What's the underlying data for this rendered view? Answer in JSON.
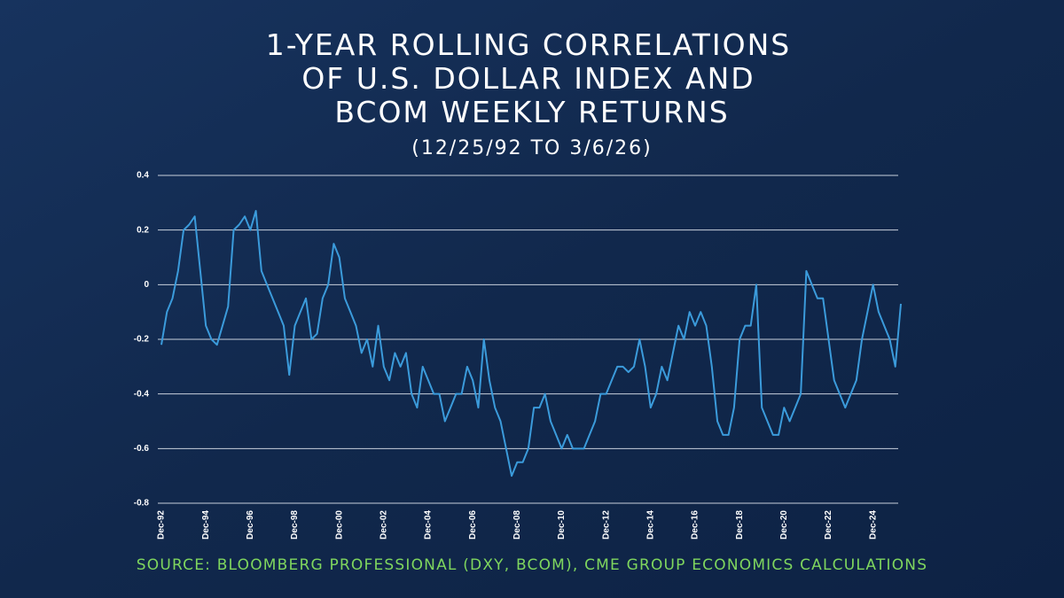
{
  "chart_data": {
    "type": "line",
    "title": [
      "1-YEAR ROLLING CORRELATIONS",
      "OF U.S. DOLLAR INDEX AND",
      "BCOM WEEKLY RETURNS"
    ],
    "subtitle": "(12/25/92 TO 3/6/26)",
    "source": "SOURCE: BLOOMBERG PROFESSIONAL (DXY, BCOM), CME GROUP ECONOMICS CALCULATIONS",
    "categories": [
      "Dec-92",
      null,
      null,
      null,
      null,
      null,
      null,
      null,
      "Dec-94",
      null,
      null,
      null,
      null,
      null,
      null,
      null,
      "Dec-96",
      null,
      null,
      null,
      null,
      null,
      null,
      null,
      "Dec-98",
      null,
      null,
      null,
      null,
      null,
      null,
      null,
      "Dec-00",
      null,
      null,
      null,
      null,
      null,
      null,
      null,
      "Dec-02",
      null,
      null,
      null,
      null,
      null,
      null,
      null,
      "Dec-04",
      null,
      null,
      null,
      null,
      null,
      null,
      null,
      "Dec-06",
      null,
      null,
      null,
      null,
      null,
      null,
      null,
      "Dec-08",
      null,
      null,
      null,
      null,
      null,
      null,
      null,
      "Dec-10",
      null,
      null,
      null,
      null,
      null,
      null,
      null,
      "Dec-12",
      null,
      null,
      null,
      null,
      null,
      null,
      null,
      "Dec-14",
      null,
      null,
      null,
      null,
      null,
      null,
      null,
      "Dec-16",
      null,
      null,
      null,
      null,
      null,
      null,
      null,
      "Dec-18",
      null,
      null,
      null,
      null,
      null,
      null,
      null,
      "Dec-20",
      null,
      null,
      null,
      null,
      null,
      null,
      null,
      "Dec-22",
      null,
      null,
      null,
      null,
      null,
      null,
      null,
      "Dec-24",
      null,
      null,
      null,
      null,
      null
    ],
    "values": [
      -0.22,
      -0.1,
      -0.05,
      0.05,
      0.2,
      0.22,
      0.25,
      0.05,
      -0.15,
      -0.2,
      -0.22,
      -0.15,
      -0.08,
      0.2,
      0.22,
      0.25,
      0.2,
      0.27,
      0.05,
      0.0,
      -0.05,
      -0.1,
      -0.15,
      -0.33,
      -0.15,
      -0.1,
      -0.05,
      -0.2,
      -0.18,
      -0.05,
      0.0,
      0.15,
      0.1,
      -0.05,
      -0.1,
      -0.15,
      -0.25,
      -0.2,
      -0.3,
      -0.15,
      -0.3,
      -0.35,
      -0.25,
      -0.3,
      -0.25,
      -0.4,
      -0.45,
      -0.3,
      -0.35,
      -0.4,
      -0.4,
      -0.5,
      -0.45,
      -0.4,
      -0.4,
      -0.3,
      -0.35,
      -0.45,
      -0.2,
      -0.35,
      -0.45,
      -0.5,
      -0.6,
      -0.7,
      -0.65,
      -0.65,
      -0.6,
      -0.45,
      -0.45,
      -0.4,
      -0.5,
      -0.55,
      -0.6,
      -0.55,
      -0.6,
      -0.6,
      -0.6,
      -0.55,
      -0.5,
      -0.4,
      -0.4,
      -0.35,
      -0.3,
      -0.3,
      -0.32,
      -0.3,
      -0.2,
      -0.3,
      -0.45,
      -0.4,
      -0.3,
      -0.35,
      -0.25,
      -0.15,
      -0.2,
      -0.1,
      -0.15,
      -0.1,
      -0.15,
      -0.3,
      -0.5,
      -0.55,
      -0.55,
      -0.45,
      -0.2,
      -0.15,
      -0.15,
      0.0,
      -0.45,
      -0.5,
      -0.55,
      -0.55,
      -0.45,
      -0.5,
      -0.45,
      -0.4,
      0.05,
      0.0,
      -0.05,
      -0.05,
      -0.2,
      -0.35,
      -0.4,
      -0.45,
      -0.4,
      -0.35,
      -0.2,
      -0.1,
      0.0,
      -0.1,
      -0.15,
      -0.2,
      -0.3,
      -0.07
    ],
    "color": "#3b9bdb",
    "ylim": [
      -0.8,
      0.4
    ],
    "yticks": [
      -0.8,
      -0.6,
      -0.4,
      -0.2,
      0,
      0.2,
      0.4
    ],
    "grid": true
  }
}
